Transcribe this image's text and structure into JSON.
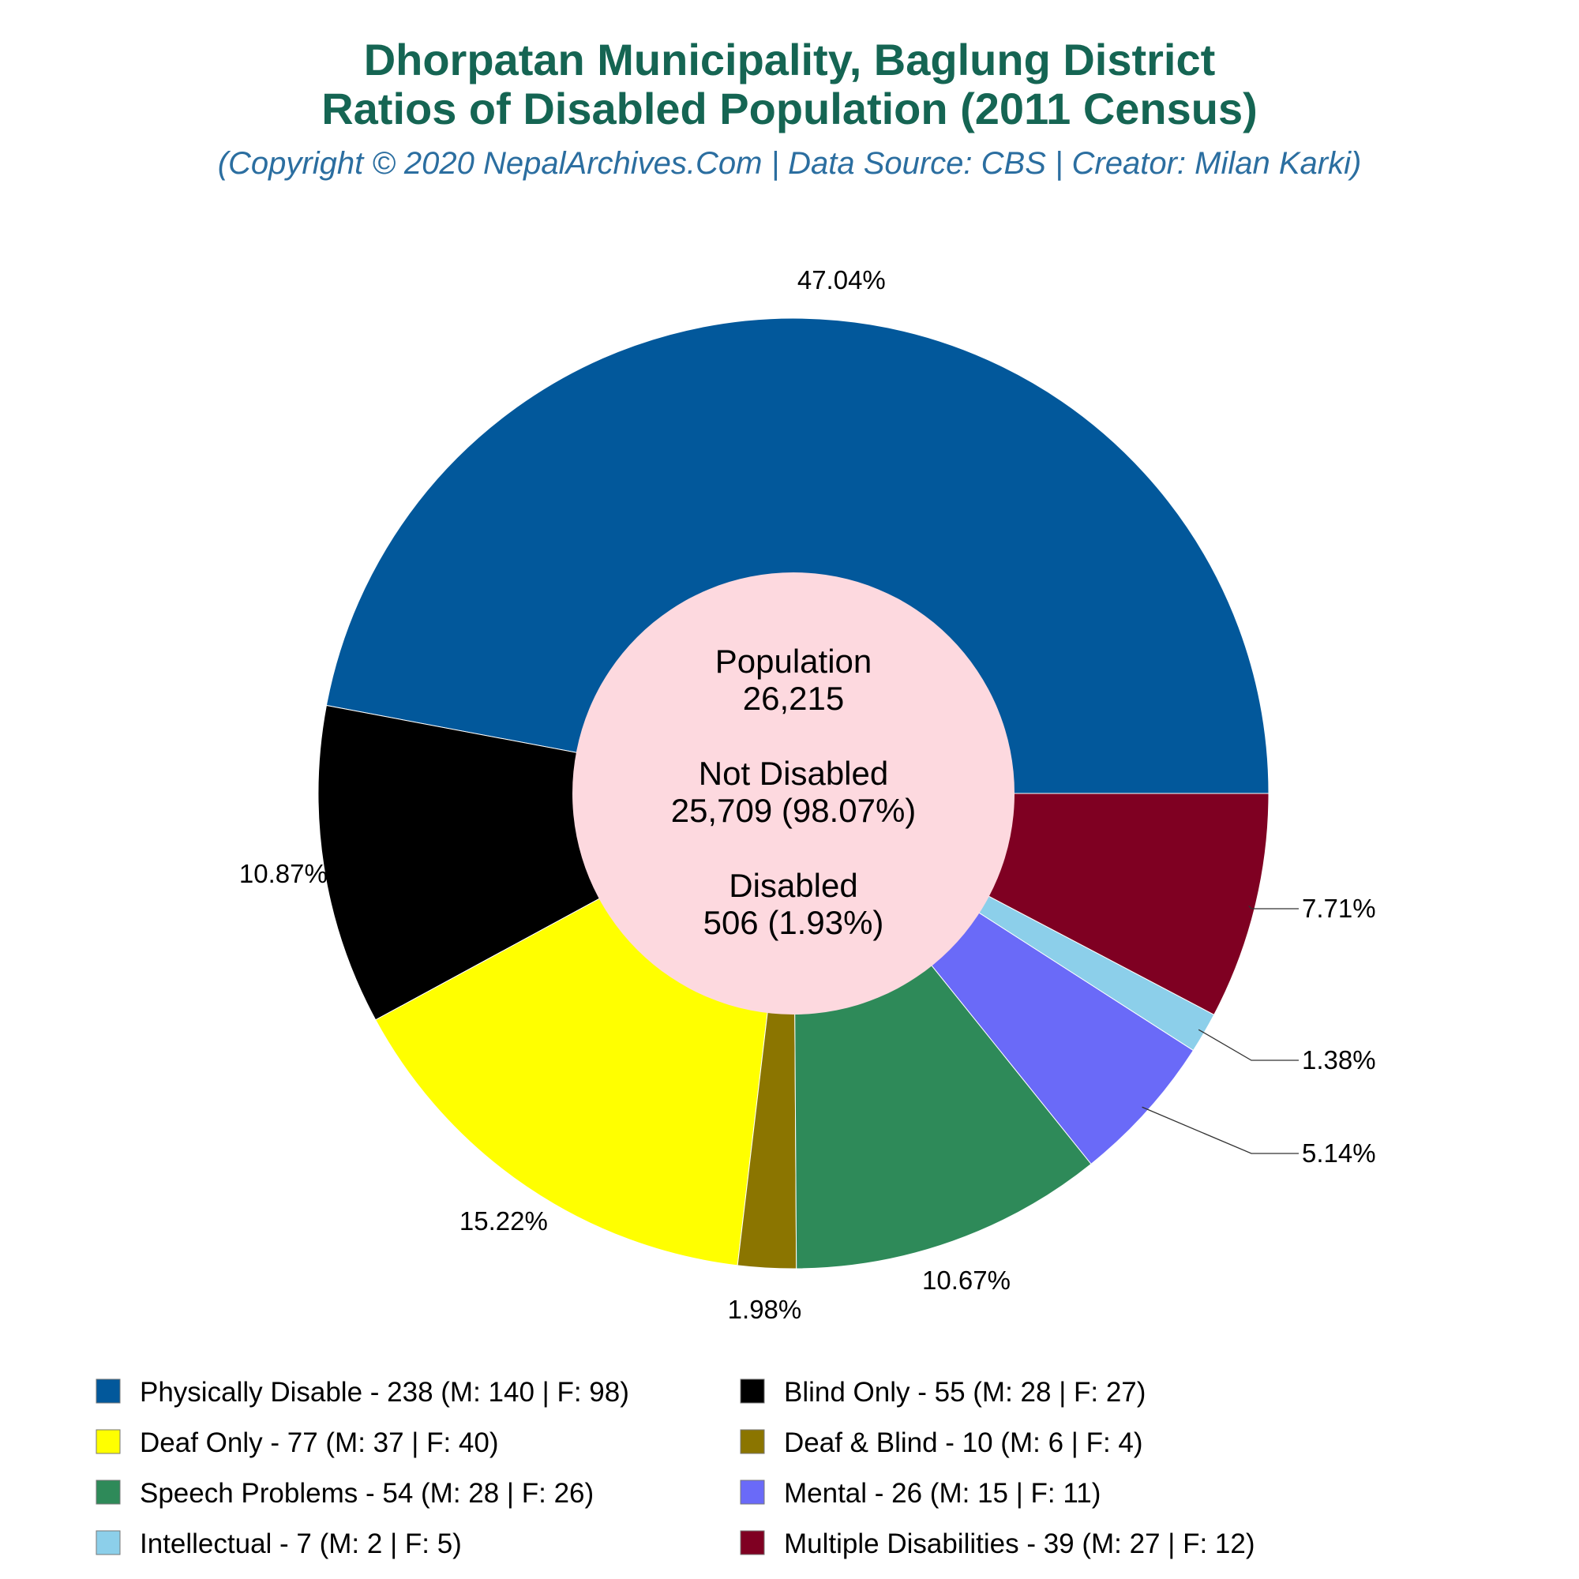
{
  "title": {
    "line1": "Dhorpatan Municipality, Baglung District",
    "line2": "Ratios of Disabled Population (2011 Census)",
    "subtitle": "(Copyright © 2020 NepalArchives.Com | Data Source: CBS | Creator: Milan Karki)"
  },
  "center": {
    "population_label": "Population",
    "population_value": "26,215",
    "not_disabled_label": "Not Disabled",
    "not_disabled_value": "25,709 (98.07%)",
    "disabled_label": "Disabled",
    "disabled_value": "506 (1.93%)"
  },
  "chart_data": {
    "type": "pie",
    "variant": "donut",
    "total_disabled": 506,
    "slices": [
      {
        "name": "Physically Disable",
        "value": 238,
        "male": 140,
        "female": 98,
        "percent_label": "47.04%",
        "color": "#02589b",
        "legend": "Physically Disable - 238 (M: 140 | F: 98)"
      },
      {
        "name": "Blind Only",
        "value": 55,
        "male": 28,
        "female": 27,
        "percent_label": "10.87%",
        "color": "#000000",
        "legend": "Blind Only - 55 (M: 28 | F: 27)"
      },
      {
        "name": "Deaf Only",
        "value": 77,
        "male": 37,
        "female": 40,
        "percent_label": "15.22%",
        "color": "#ffff00",
        "legend": "Deaf Only - 77 (M: 37 | F: 40)"
      },
      {
        "name": "Deaf & Blind",
        "value": 10,
        "male": 6,
        "female": 4,
        "percent_label": "1.98%",
        "color": "#8b7500",
        "legend": "Deaf & Blind - 10 (M: 6 | F: 4)"
      },
      {
        "name": "Speech Problems",
        "value": 54,
        "male": 28,
        "female": 26,
        "percent_label": "10.67%",
        "color": "#2e8a59",
        "legend": "Speech Problems - 54 (M: 28 | F: 26)"
      },
      {
        "name": "Mental",
        "value": 26,
        "male": 15,
        "female": 11,
        "percent_label": "5.14%",
        "color": "#6a6af8",
        "legend": "Mental - 26 (M: 15 | F: 11)"
      },
      {
        "name": "Intellectual",
        "value": 7,
        "male": 2,
        "female": 5,
        "percent_label": "1.38%",
        "color": "#8ccfea",
        "legend": "Intellectual - 7 (M: 2 | F: 5)"
      },
      {
        "name": "Multiple Disabilities",
        "value": 39,
        "male": 27,
        "female": 12,
        "percent_label": "7.71%",
        "color": "#7f0022",
        "legend": "Multiple Disabilities - 39 (M: 27 | F: 12)"
      }
    ],
    "legend_order": [
      "Physically Disable",
      "Blind Only",
      "Deaf Only",
      "Deaf & Blind",
      "Speech Problems",
      "Mental",
      "Intellectual",
      "Multiple Disabilities"
    ],
    "legend_placement": "bottom",
    "center_color": "#fdd9df"
  }
}
